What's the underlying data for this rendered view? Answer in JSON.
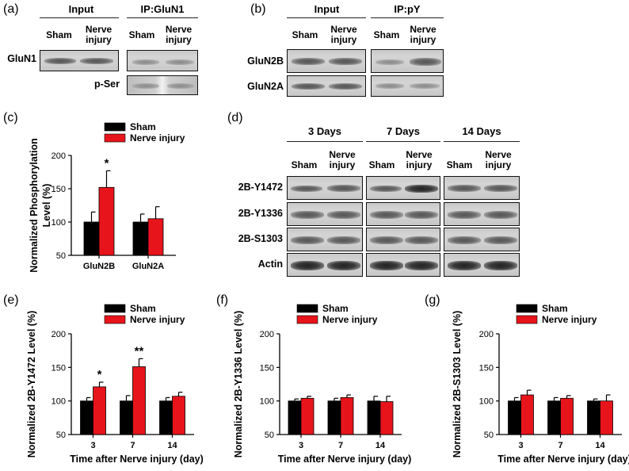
{
  "panels": {
    "a": {
      "label": "(a)",
      "headers": [
        "Input",
        "IP:GluN1"
      ],
      "lanes": [
        "Sham",
        "Nerve\ninjury",
        "Sham",
        "Nerve\ninjury"
      ],
      "rows": [
        "GluN1",
        "p-Ser"
      ]
    },
    "b": {
      "label": "(b)",
      "headers": [
        "Input",
        "IP:pY"
      ],
      "lanes": [
        "Sham",
        "Nerve\ninjury",
        "Sham",
        "Nerve\ninjury"
      ],
      "rows": [
        "GluN2B",
        "GluN2A"
      ]
    },
    "c": {
      "label": "(c)"
    },
    "d": {
      "label": "(d)",
      "headers": [
        "3 Days",
        "7 Days",
        "14 Days"
      ],
      "lanes": [
        "Sham",
        "Nerve\ninjury",
        "Sham",
        "Nerve\ninjury",
        "Sham",
        "Nerve\ninjury"
      ],
      "rows": [
        "2B-Y1472",
        "2B-Y1336",
        "2B-S1303",
        "Actin"
      ]
    },
    "e": {
      "label": "(e)"
    },
    "f": {
      "label": "(f)"
    },
    "g": {
      "label": "(g)"
    }
  },
  "colors": {
    "sham": "#000000",
    "injury": "#e8141b"
  },
  "chart_data": [
    {
      "id": "c",
      "type": "bar",
      "categories": [
        "GluN2B",
        "GluN2A"
      ],
      "series": [
        {
          "name": "Sham",
          "values": [
            100,
            100
          ],
          "errors": [
            15,
            12
          ]
        },
        {
          "name": "Nerve injury",
          "values": [
            152,
            105
          ],
          "errors": [
            25,
            18
          ]
        }
      ],
      "annotations": [
        "*",
        ""
      ],
      "ylabel": "Normalized Phosphorylation\nLevel (%)",
      "xlabel": "",
      "ylim": [
        50,
        200
      ],
      "yticks": [
        50,
        100,
        150,
        200
      ]
    },
    {
      "id": "e",
      "type": "bar",
      "categories": [
        "3",
        "7",
        "14"
      ],
      "series": [
        {
          "name": "Sham",
          "values": [
            100,
            100,
            100
          ],
          "errors": [
            5,
            8,
            5
          ]
        },
        {
          "name": "Nerve injury",
          "values": [
            121,
            151,
            107
          ],
          "errors": [
            7,
            12,
            6
          ]
        }
      ],
      "annotations": [
        "*",
        "**",
        ""
      ],
      "ylabel": "Normalized 2B-Y1472 Level (%)",
      "xlabel": "Time after Nerve injury (day)",
      "ylim": [
        50,
        200
      ],
      "yticks": [
        50,
        100,
        150,
        200
      ]
    },
    {
      "id": "f",
      "type": "bar",
      "categories": [
        "3",
        "7",
        "14"
      ],
      "series": [
        {
          "name": "Sham",
          "values": [
            100,
            100,
            100
          ],
          "errors": [
            3,
            4,
            7
          ]
        },
        {
          "name": "Nerve injury",
          "values": [
            104,
            105,
            99
          ],
          "errors": [
            3,
            4,
            8
          ]
        }
      ],
      "annotations": [
        "",
        "",
        ""
      ],
      "ylabel": "Normalized 2B-Y1336 Level (%)",
      "xlabel": "Time after Nerve injury (day)",
      "ylim": [
        50,
        200
      ],
      "yticks": [
        50,
        100,
        150,
        200
      ]
    },
    {
      "id": "g",
      "type": "bar",
      "categories": [
        "3",
        "7",
        "14"
      ],
      "series": [
        {
          "name": "Sham",
          "values": [
            100,
            100,
            100
          ],
          "errors": [
            5,
            5,
            3
          ]
        },
        {
          "name": "Nerve injury",
          "values": [
            109,
            104,
            100
          ],
          "errors": [
            7,
            4,
            9
          ]
        }
      ],
      "annotations": [
        "",
        "",
        ""
      ],
      "ylabel": "Normalized 2B-S1303 Level (%)",
      "xlabel": "Time after Nerve injury (day)",
      "ylim": [
        50,
        200
      ],
      "yticks": [
        50,
        100,
        150,
        200
      ]
    }
  ]
}
